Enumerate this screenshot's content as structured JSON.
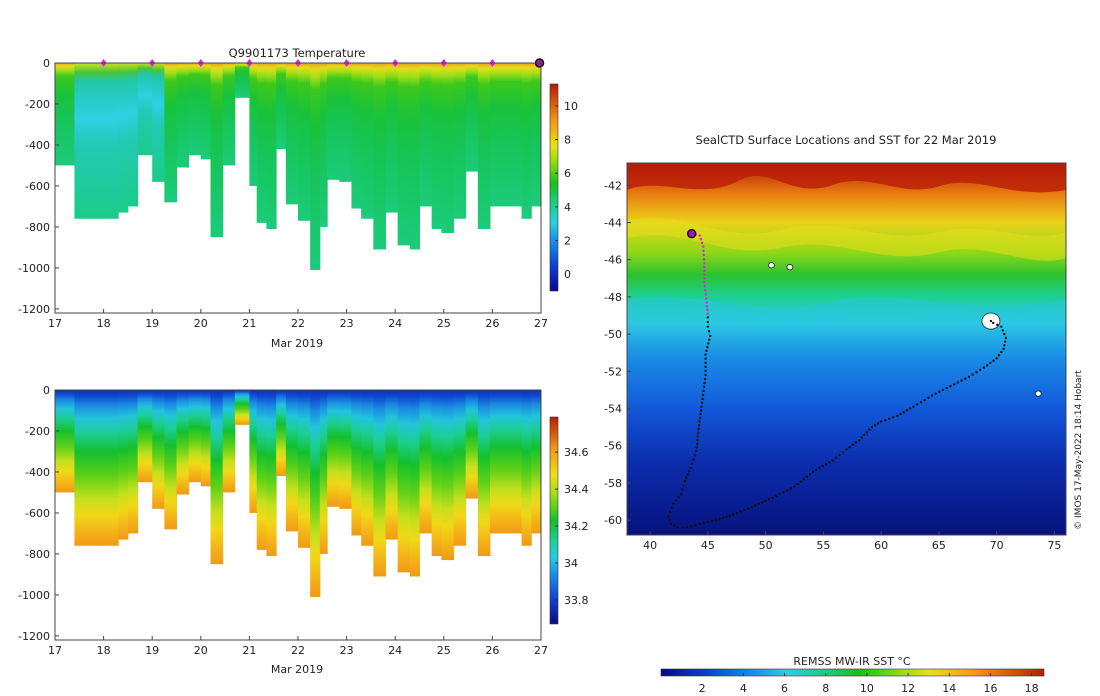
{
  "chart_data": [
    {
      "type": "heatmap",
      "title": "Q9901173  Temperature",
      "xlabel": "Mar 2019",
      "ylabel": "",
      "xlim": [
        17,
        27
      ],
      "ylim": [
        -1220,
        0
      ],
      "x_ticks": [
        "17",
        "18",
        "19",
        "20",
        "21",
        "22",
        "23",
        "24",
        "25",
        "26",
        "27"
      ],
      "y_ticks": [
        "0",
        "-200",
        "-400",
        "-600",
        "-800",
        "-1000",
        "-1200"
      ],
      "colorbar": {
        "min": -1,
        "max": 11.3,
        "ticks": [
          "0",
          "2",
          "4",
          "6",
          "8",
          "10"
        ]
      },
      "surface_markers_days": [
        18,
        19,
        20,
        21,
        22,
        23,
        24,
        25,
        26
      ],
      "current_position_day": 26.97,
      "profiles": {
        "day": [
          17.0,
          17.4,
          17.9,
          18.3,
          18.5,
          18.7,
          19.0,
          19.25,
          19.5,
          19.75,
          20.0,
          20.2,
          20.45,
          20.7,
          21.0,
          21.15,
          21.35,
          21.55,
          21.75,
          22.0,
          22.25,
          22.45,
          22.6,
          22.85,
          23.1,
          23.3,
          23.55,
          23.8,
          24.05,
          24.3,
          24.5,
          24.75,
          24.95,
          25.2,
          25.45,
          25.7,
          25.95,
          26.15,
          26.35,
          26.6,
          26.8
        ],
        "max_depth": [
          500,
          760,
          760,
          730,
          700,
          450,
          580,
          680,
          510,
          450,
          470,
          850,
          500,
          170,
          600,
          780,
          810,
          420,
          690,
          770,
          1010,
          800,
          570,
          580,
          710,
          760,
          910,
          730,
          890,
          910,
          700,
          810,
          830,
          760,
          530,
          810,
          700,
          700,
          700,
          760,
          700
        ]
      }
    },
    {
      "type": "heatmap",
      "title": "",
      "xlabel": "Mar 2019",
      "ylabel": "",
      "xlim": [
        17,
        27
      ],
      "ylim": [
        -1220,
        0
      ],
      "x_ticks": [
        "17",
        "18",
        "19",
        "20",
        "21",
        "22",
        "23",
        "24",
        "25",
        "26",
        "27"
      ],
      "y_ticks": [
        "0",
        "-200",
        "-400",
        "-600",
        "-800",
        "-1000",
        "-1200"
      ],
      "colorbar": {
        "min": 33.67,
        "max": 34.79,
        "ticks": [
          "33.8",
          "34",
          "34.2",
          "34.4",
          "34.6"
        ]
      }
    },
    {
      "type": "heatmap",
      "title": "SealCTD Surface Locations and SST for 22 Mar 2019",
      "xlabel": "",
      "ylabel": "",
      "xlim": [
        38,
        76
      ],
      "ylim": [
        -60.8,
        -40.8
      ],
      "x_ticks": [
        "40",
        "45",
        "50",
        "55",
        "60",
        "65",
        "70",
        "75"
      ],
      "y_ticks": [
        "-42",
        "-44",
        "-46",
        "-48",
        "-50",
        "-52",
        "-54",
        "-56",
        "-58",
        "-60"
      ],
      "colorbar": {
        "label": "REMSS MW-IR SST °C",
        "min": 0,
        "max": 18.6,
        "ticks": [
          "2",
          "4",
          "6",
          "8",
          "10",
          "12",
          "14",
          "16",
          "18"
        ]
      },
      "track": {
        "lon": [
          43.6,
          44.3,
          44.6,
          44.7,
          44.7,
          44.9,
          45.0,
          45.0,
          45.2,
          44.8,
          44.8,
          44.5,
          44.2,
          44.0,
          43.5,
          43.0,
          42.7,
          42.0,
          41.6,
          41.8,
          42.4,
          43.2,
          44.3,
          45.7,
          47.2,
          48.8,
          50.6,
          52.5,
          54.1,
          55.8,
          57.0,
          58.1,
          59.2,
          60.0,
          61.4,
          62.8,
          64.4,
          66.0,
          67.6,
          68.9,
          70.0,
          70.6,
          70.8,
          70.4,
          69.7,
          69.3
        ],
        "lat": [
          -44.6,
          -44.7,
          -45.3,
          -46.2,
          -47.2,
          -48.3,
          -49.1,
          -49.6,
          -50.1,
          -51.1,
          -52.2,
          -53.7,
          -55.1,
          -56.3,
          -57.2,
          -57.9,
          -58.6,
          -59.1,
          -59.8,
          -60.2,
          -60.4,
          -60.4,
          -60.2,
          -60.0,
          -59.7,
          -59.3,
          -58.8,
          -58.2,
          -57.4,
          -56.8,
          -56.2,
          -55.7,
          -55.0,
          -54.7,
          -54.4,
          -53.9,
          -53.3,
          -52.8,
          -52.3,
          -51.8,
          -51.3,
          -50.8,
          -50.2,
          -49.6,
          -49.4,
          -49.2
        ],
        "recent_count": 6,
        "start": {
          "lon": 43.6,
          "lat": -44.6
        }
      },
      "ice": [
        {
          "lon": 69.5,
          "lat": -49.3
        },
        {
          "lon": 50.5,
          "lat": -46.3
        },
        {
          "lon": 52.1,
          "lat": -46.4
        },
        {
          "lon": 73.6,
          "lat": -53.2
        }
      ]
    }
  ],
  "credit": "© IMOS 17-May-2022 18:14 Hobart"
}
